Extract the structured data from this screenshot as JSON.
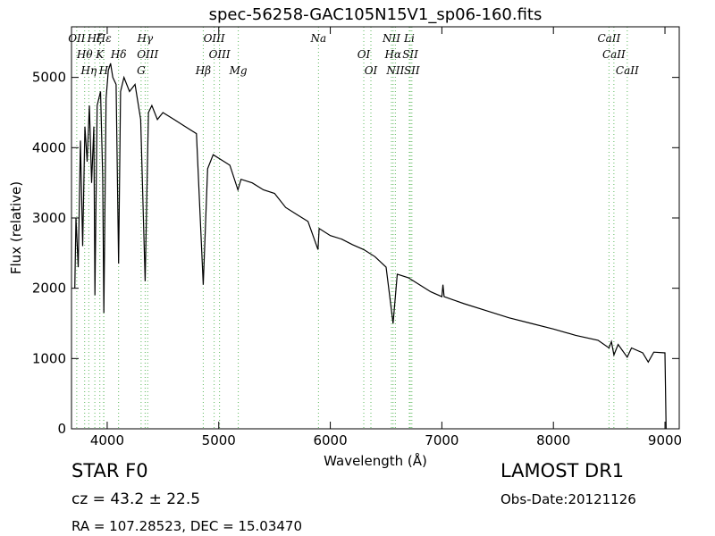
{
  "chart_data": {
    "type": "line",
    "title": "spec-56258-GAC105N15V1_sp06-160.fits",
    "xlabel": "Wavelength (Å)",
    "ylabel": "Flux (relative)",
    "xlim": [
      3680,
      9128
    ],
    "ylim": [
      0,
      5720
    ],
    "xticks": [
      4000,
      5000,
      6000,
      7000,
      8000,
      9000
    ],
    "yticks": [
      0,
      1000,
      2000,
      3000,
      4000,
      5000
    ],
    "color": "#000000",
    "x": [
      3710,
      3720,
      3740,
      3760,
      3780,
      3800,
      3820,
      3840,
      3860,
      3880,
      3890,
      3910,
      3940,
      3960,
      3970,
      3990,
      4010,
      4030,
      4050,
      4080,
      4102,
      4120,
      4150,
      4200,
      4250,
      4300,
      4340,
      4370,
      4400,
      4450,
      4500,
      4600,
      4700,
      4800,
      4861,
      4900,
      4950,
      5000,
      5100,
      5172,
      5200,
      5300,
      5400,
      5500,
      5600,
      5700,
      5800,
      5890,
      5900,
      6000,
      6100,
      6200,
      6300,
      6400,
      6500,
      6563,
      6600,
      6700,
      6800,
      6900,
      7000,
      7010,
      7020,
      7200,
      7400,
      7600,
      7800,
      8000,
      8200,
      8400,
      8498,
      8520,
      8542,
      8580,
      8662,
      8700,
      8800,
      8850,
      8900,
      9000,
      9010
    ],
    "values": [
      2000,
      3000,
      2300,
      4100,
      2600,
      4300,
      3800,
      4600,
      3500,
      4300,
      1900,
      4600,
      4800,
      3600,
      1650,
      4700,
      5100,
      5200,
      5000,
      4900,
      2350,
      4800,
      5000,
      4800,
      4900,
      4400,
      2100,
      4500,
      4600,
      4400,
      4500,
      4400,
      4300,
      4200,
      2050,
      3700,
      3900,
      3850,
      3750,
      3400,
      3550,
      3500,
      3400,
      3350,
      3150,
      3050,
      2950,
      2550,
      2850,
      2750,
      2700,
      2620,
      2550,
      2450,
      2300,
      1500,
      2200,
      2150,
      2050,
      1950,
      1880,
      2050,
      1880,
      1780,
      1680,
      1580,
      1500,
      1420,
      1330,
      1260,
      1150,
      1240,
      1050,
      1200,
      1020,
      1150,
      1080,
      950,
      1090,
      1080,
      0
    ],
    "lines": {
      "color": "#5cb85c",
      "wavelengths": [
        3727,
        3798,
        3835,
        3889,
        3934,
        3968,
        3970,
        4102,
        4304,
        4340,
        4363,
        4861,
        4959,
        5007,
        5175,
        5894,
        6300,
        6364,
        6548,
        6563,
        6583,
        6708,
        6717,
        6731,
        8498,
        8542,
        8662
      ],
      "labels": [
        "OII",
        "Hθ",
        "Hη",
        "Hζ",
        "K",
        "H",
        "Hε",
        "Hδ",
        "G",
        "Hγ",
        "OIII",
        "Hβ",
        "OIII",
        "OIII",
        "Mg",
        "Na",
        "OI",
        "OI",
        "NII",
        "Hα",
        "NII",
        "Li",
        "SII",
        "SII",
        "CaII",
        "CaII",
        "CaII"
      ]
    },
    "annotations": {
      "object": "STAR   F0",
      "cz": "cz = 43.2  ± 22.5",
      "coords": "RA = 107.28523, DEC = 15.03470",
      "survey": "LAMOST DR1",
      "date": "Obs-Date:20121126"
    }
  }
}
